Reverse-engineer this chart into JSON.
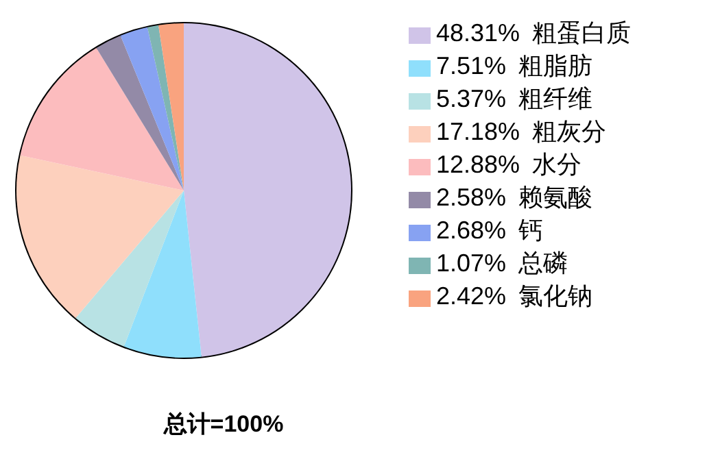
{
  "chart_data": {
    "type": "pie",
    "categories": [
      "粗蛋白质",
      "粗脂肪",
      "粗纤维",
      "粗灰分",
      "水分",
      "赖氨酸",
      "钙",
      "总磷",
      "氯化钠"
    ],
    "values": [
      48.31,
      7.51,
      5.37,
      17.18,
      12.88,
      2.58,
      2.68,
      1.07,
      2.42
    ],
    "value_labels": [
      "48.31%",
      "7.51%",
      "5.37%",
      "17.18%",
      "12.88%",
      "2.58%",
      "2.68%",
      "1.07%",
      "2.42%"
    ],
    "colors": [
      "#d0c4e8",
      "#8fdffc",
      "#b8e2e4",
      "#fdd0bd",
      "#fcbcbe",
      "#938aa7",
      "#87a2f2",
      "#7fb5b3",
      "#f9a37f"
    ],
    "legend": "right",
    "annotations": [
      "总计=100%"
    ]
  }
}
